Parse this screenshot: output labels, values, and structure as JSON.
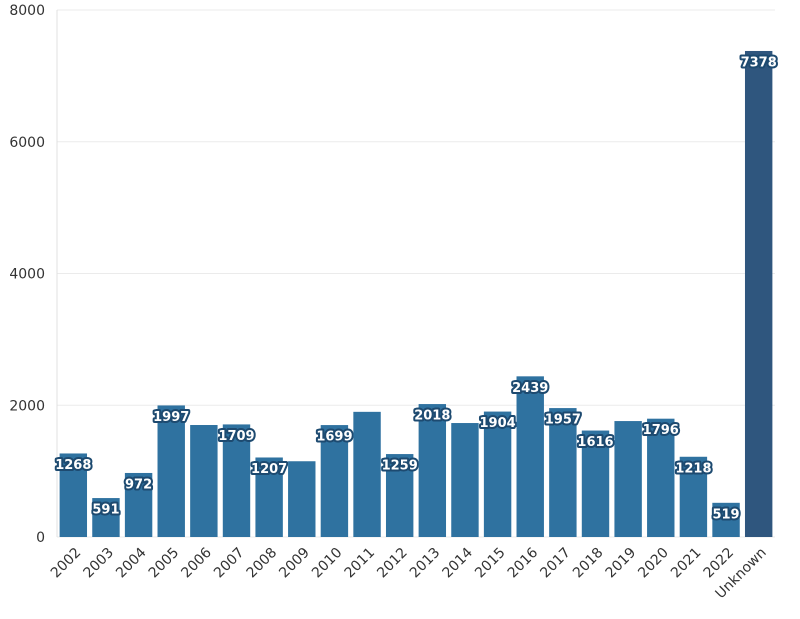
{
  "chart_data": {
    "type": "bar",
    "categories": [
      "2002",
      "2003",
      "2004",
      "2005",
      "2006",
      "2007",
      "2008",
      "2009",
      "2010",
      "2011",
      "2012",
      "2013",
      "2014",
      "2015",
      "2016",
      "2017",
      "2018",
      "2019",
      "2020",
      "2021",
      "2022",
      "Unknown"
    ],
    "values": [
      1268,
      591,
      972,
      1997,
      1700,
      1709,
      1207,
      1150,
      1699,
      1900,
      1259,
      2018,
      1730,
      1904,
      2439,
      1957,
      1616,
      1760,
      1796,
      1218,
      519,
      7378
    ],
    "value_labels": [
      "1268",
      "591",
      "972",
      "1997",
      null,
      "1709",
      "1207",
      null,
      "1699",
      null,
      "1259",
      "2018",
      null,
      "1904",
      "2439",
      "1957",
      "1616",
      null,
      "1796",
      "1218",
      "519",
      "7378"
    ],
    "colors": [
      "#2f72a0",
      "#2f72a0",
      "#2f72a0",
      "#2f72a0",
      "#2f72a0",
      "#2f72a0",
      "#2f72a0",
      "#2f72a0",
      "#2f72a0",
      "#2f72a0",
      "#2f72a0",
      "#2f72a0",
      "#2f72a0",
      "#2f72a0",
      "#2f72a0",
      "#2f72a0",
      "#2f72a0",
      "#2f72a0",
      "#2f72a0",
      "#2f72a0",
      "#2f72a0",
      "#2f567e"
    ],
    "ylim": [
      0,
      8000
    ],
    "yticks": [
      0,
      2000,
      4000,
      6000,
      8000
    ],
    "grid": true
  }
}
